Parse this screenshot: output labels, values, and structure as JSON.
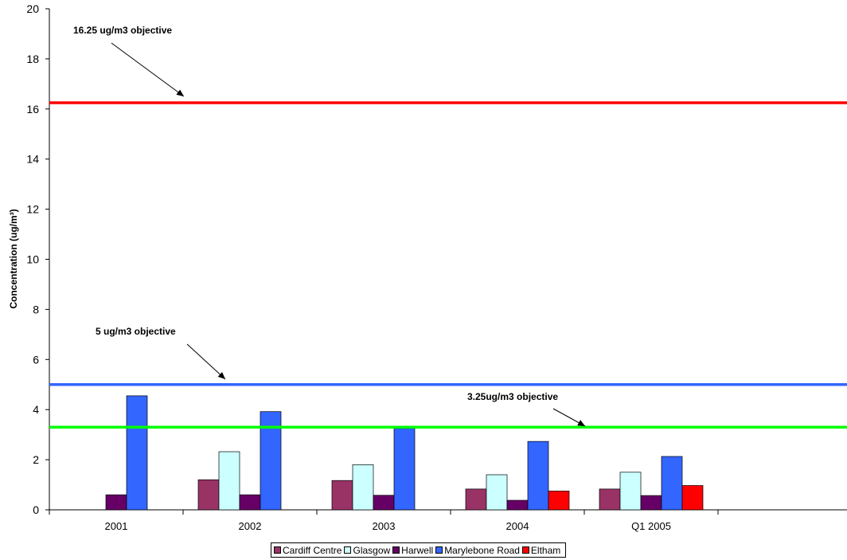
{
  "chart_data": {
    "type": "bar",
    "categories": [
      "2001",
      "2002",
      "2003",
      "2004",
      "Q1 2005"
    ],
    "series": [
      {
        "name": "Cardiff Centre",
        "color": "#993366",
        "values": [
          null,
          1.2,
          1.17,
          0.83,
          0.83
        ]
      },
      {
        "name": "Glasgow",
        "color": "#ccffff",
        "values": [
          null,
          2.32,
          1.8,
          1.4,
          1.5
        ]
      },
      {
        "name": "Harwell",
        "color": "#660066",
        "values": [
          0.6,
          0.6,
          0.58,
          0.38,
          0.57
        ]
      },
      {
        "name": "Marylebone Road",
        "color": "#3366ff",
        "values": [
          4.55,
          3.92,
          3.25,
          2.73,
          2.13
        ]
      },
      {
        "name": "Eltham",
        "color": "#ff0000",
        "values": [
          null,
          null,
          null,
          0.75,
          0.97
        ]
      }
    ],
    "ylabel": "Concentration (ug/m³)",
    "ylim": [
      0,
      20
    ],
    "yticks": [
      0,
      2,
      4,
      6,
      8,
      10,
      12,
      14,
      16,
      18,
      20
    ],
    "objectives": [
      {
        "value": 16.25,
        "color": "#ff0000",
        "label": "16.25 ug/m3 objective"
      },
      {
        "value": 5.0,
        "color": "#3366ff",
        "label": "5 ug/m3 objective"
      },
      {
        "value": 3.3,
        "color": "#00ff00",
        "label": "3.25ug/m3 objective"
      }
    ],
    "legend_position": "bottom"
  }
}
